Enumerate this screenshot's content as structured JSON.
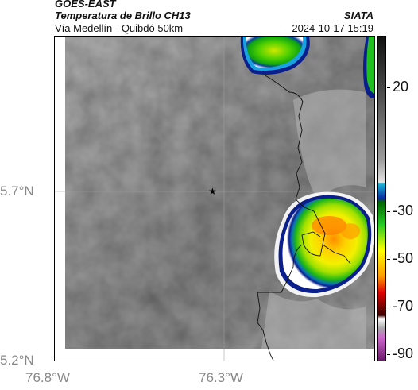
{
  "header": {
    "satellite": "GOES-EAST",
    "product": "Temperatura de Brillo CH13",
    "route": "Vía Medellín - Quibdó 50km",
    "organization": "SIATA",
    "datetime": "2024-10-17 15:19"
  },
  "map": {
    "y_axis_labels": [
      "5.7°N",
      "5.2°N"
    ],
    "x_axis_labels": [
      "76.8°W",
      "76.3°W"
    ],
    "marker_icon": "star-icon",
    "background_gray": "#8a8a8a"
  },
  "colorbar": {
    "tick_labels": [
      "20",
      "-30",
      "-50",
      "-70",
      "-90"
    ],
    "color_stops": [
      "#111111",
      "#7a7a7a",
      "#dddddd",
      "#1ab4d6",
      "#0a2ba0",
      "#12b512",
      "#ffff00",
      "#ff9a00",
      "#e00000",
      "#3a0000",
      "#ffffff",
      "#cc66cc",
      "#6a1a6a"
    ]
  }
}
